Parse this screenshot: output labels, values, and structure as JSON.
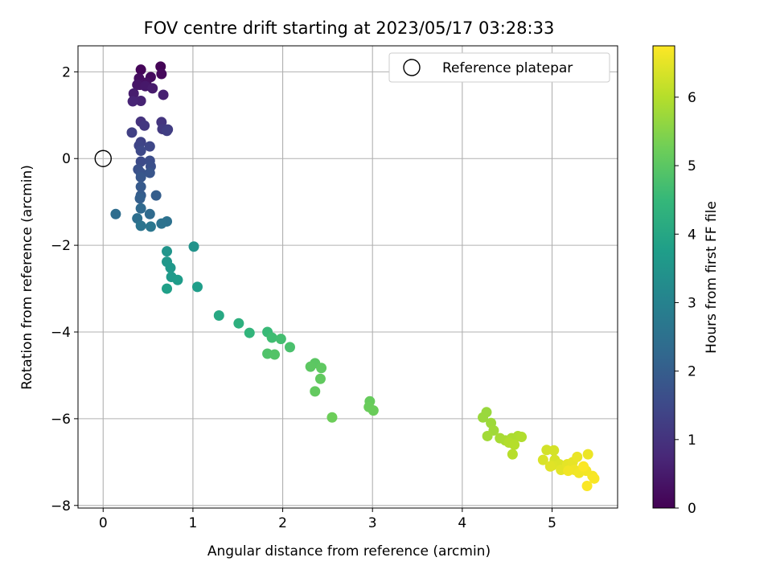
{
  "chart_data": {
    "type": "scatter",
    "title": "FOV centre drift starting at 2023/05/17 03:28:33",
    "xlabel": "Angular distance from reference (arcmin)",
    "ylabel": "Rotation from reference (arcmin)",
    "xlim": [
      -0.28,
      5.73
    ],
    "ylim": [
      -8.06,
      2.6
    ],
    "xticks": [
      0,
      1,
      2,
      3,
      4,
      5
    ],
    "yticks": [
      2,
      0,
      -2,
      -4,
      -6,
      -8
    ],
    "grid": true,
    "legend": {
      "placement": "top-right",
      "entries": [
        "Reference platepar"
      ]
    },
    "reference": {
      "x": 0,
      "y": 0
    },
    "colorbar": {
      "label": "Hours from first FF file",
      "colormap": "viridis",
      "range": [
        0,
        6.75
      ],
      "ticks": [
        0,
        1,
        2,
        3,
        4,
        5,
        6
      ]
    },
    "series": [
      {
        "points": [
          [
            0.64,
            2.12,
            0.05
          ],
          [
            0.42,
            2.05,
            0.1
          ],
          [
            0.65,
            1.95,
            0.15
          ],
          [
            0.53,
            1.88,
            0.2
          ],
          [
            0.4,
            1.85,
            0.25
          ],
          [
            0.48,
            1.75,
            0.3
          ],
          [
            0.41,
            1.7,
            0.35
          ],
          [
            0.38,
            1.7,
            0.4
          ],
          [
            0.47,
            1.67,
            0.45
          ],
          [
            0.55,
            1.62,
            0.5
          ],
          [
            0.34,
            1.5,
            0.55
          ],
          [
            0.67,
            1.47,
            0.6
          ],
          [
            0.42,
            1.33,
            0.65
          ],
          [
            0.33,
            1.32,
            0.7
          ],
          [
            0.42,
            0.85,
            1.0
          ],
          [
            0.65,
            0.84,
            1.05
          ],
          [
            0.46,
            0.76,
            1.1
          ],
          [
            0.66,
            0.68,
            1.15
          ],
          [
            0.72,
            0.67,
            1.2
          ],
          [
            0.71,
            0.64,
            1.25
          ],
          [
            0.32,
            0.6,
            1.3
          ],
          [
            0.42,
            0.38,
            1.35
          ],
          [
            0.4,
            0.3,
            1.4
          ],
          [
            0.52,
            0.28,
            1.45
          ],
          [
            0.42,
            0.18,
            1.5
          ],
          [
            0.42,
            -0.07,
            1.55
          ],
          [
            0.52,
            -0.05,
            1.6
          ],
          [
            0.53,
            -0.18,
            1.65
          ],
          [
            0.39,
            -0.25,
            1.7
          ],
          [
            0.42,
            -0.33,
            1.75
          ],
          [
            0.52,
            -0.33,
            1.8
          ],
          [
            0.42,
            -0.43,
            1.85
          ],
          [
            0.42,
            -0.65,
            1.9
          ],
          [
            0.42,
            -0.85,
            1.95
          ],
          [
            0.59,
            -0.85,
            2.0
          ],
          [
            0.41,
            -0.92,
            2.05
          ],
          [
            0.42,
            -1.15,
            2.3
          ],
          [
            0.52,
            -1.28,
            2.35
          ],
          [
            0.14,
            -1.28,
            2.4
          ],
          [
            0.38,
            -1.38,
            2.45
          ],
          [
            0.71,
            -1.45,
            2.5
          ],
          [
            0.65,
            -1.5,
            2.55
          ],
          [
            0.42,
            -1.55,
            2.6
          ],
          [
            0.53,
            -1.57,
            2.65
          ],
          [
            1.01,
            -2.03,
            3.45
          ],
          [
            0.71,
            -2.14,
            3.5
          ],
          [
            0.71,
            -2.38,
            3.55
          ],
          [
            0.75,
            -2.52,
            3.6
          ],
          [
            0.76,
            -2.73,
            3.65
          ],
          [
            0.83,
            -2.8,
            3.7
          ],
          [
            1.05,
            -2.96,
            3.75
          ],
          [
            0.71,
            -3.0,
            3.8
          ],
          [
            1.29,
            -3.62,
            4.05
          ],
          [
            1.51,
            -3.8,
            4.25
          ],
          [
            1.63,
            -4.02,
            4.4
          ],
          [
            1.83,
            -4.0,
            4.55
          ],
          [
            1.88,
            -4.13,
            4.65
          ],
          [
            1.98,
            -4.16,
            4.7
          ],
          [
            2.08,
            -4.35,
            4.78
          ],
          [
            1.83,
            -4.5,
            4.85
          ],
          [
            1.91,
            -4.52,
            4.9
          ],
          [
            2.36,
            -4.72,
            5.0
          ],
          [
            2.31,
            -4.8,
            5.02
          ],
          [
            2.43,
            -4.83,
            5.05
          ],
          [
            2.42,
            -5.08,
            5.08
          ],
          [
            2.36,
            -5.37,
            5.1
          ],
          [
            2.97,
            -5.6,
            5.15
          ],
          [
            2.96,
            -5.73,
            5.18
          ],
          [
            3.01,
            -5.81,
            5.2
          ],
          [
            2.55,
            -5.97,
            5.22
          ],
          [
            4.27,
            -5.85,
            5.7
          ],
          [
            4.23,
            -5.97,
            5.72
          ],
          [
            4.32,
            -6.1,
            5.75
          ],
          [
            4.35,
            -6.27,
            5.78
          ],
          [
            4.28,
            -6.4,
            5.8
          ],
          [
            4.42,
            -6.45,
            5.85
          ],
          [
            4.48,
            -6.5,
            5.88
          ],
          [
            4.55,
            -6.45,
            5.9
          ],
          [
            4.62,
            -6.4,
            5.92
          ],
          [
            4.66,
            -6.42,
            5.95
          ],
          [
            4.52,
            -6.55,
            5.97
          ],
          [
            4.58,
            -6.6,
            6.0
          ],
          [
            4.56,
            -6.82,
            6.02
          ],
          [
            4.94,
            -6.72,
            6.3
          ],
          [
            5.02,
            -6.73,
            6.32
          ],
          [
            5.03,
            -6.95,
            6.35
          ],
          [
            4.9,
            -6.95,
            6.38
          ],
          [
            5.08,
            -7.05,
            6.4
          ],
          [
            5.0,
            -7.08,
            6.42
          ],
          [
            4.98,
            -7.1,
            6.45
          ],
          [
            5.1,
            -7.18,
            6.47
          ],
          [
            5.17,
            -7.05,
            6.5
          ],
          [
            5.23,
            -7.0,
            6.52
          ],
          [
            5.28,
            -6.88,
            6.55
          ],
          [
            5.4,
            -6.82,
            6.57
          ],
          [
            5.25,
            -7.18,
            6.6
          ],
          [
            5.18,
            -7.2,
            6.62
          ],
          [
            5.3,
            -7.25,
            6.63
          ],
          [
            5.38,
            -7.2,
            6.65
          ],
          [
            5.45,
            -7.32,
            6.67
          ],
          [
            5.47,
            -7.38,
            6.7
          ],
          [
            5.39,
            -7.55,
            6.72
          ],
          [
            5.35,
            -7.1,
            6.73
          ]
        ]
      }
    ]
  }
}
